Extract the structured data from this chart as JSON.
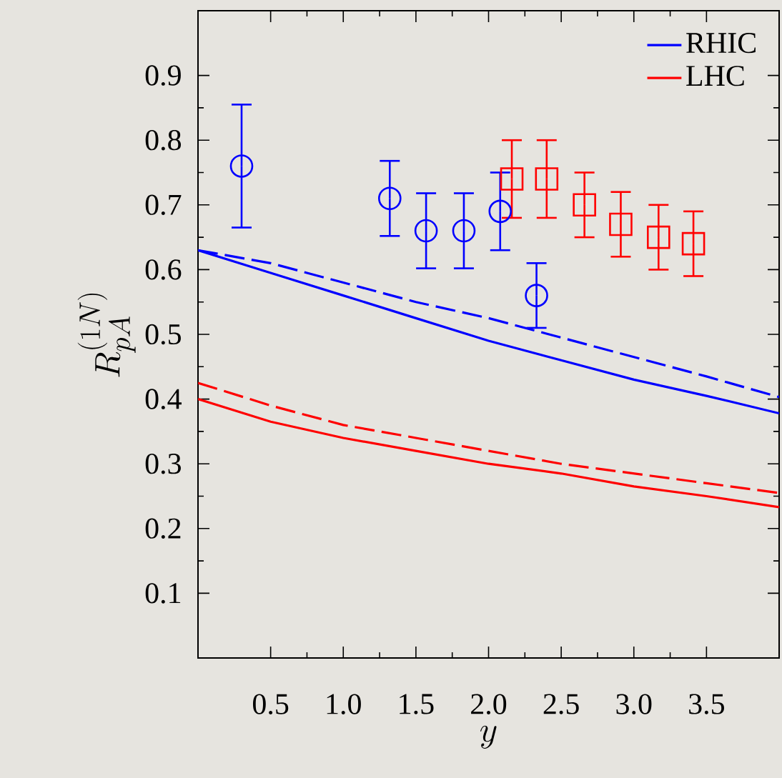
{
  "chart_data": {
    "type": "line",
    "xlabel": "y",
    "ylabel": "R_{pA}^{(1N)}",
    "xlim": [
      0,
      4
    ],
    "ylim": [
      0,
      1
    ],
    "xticks": [
      0.5,
      {
        "value": 1,
        "label": "1.0"
      },
      1.5,
      {
        "value": 2,
        "label": "2.0"
      },
      2.5,
      {
        "value": 3,
        "label": "3.0"
      },
      3.5
    ],
    "yticks": [
      0.1,
      0.2,
      0.3,
      0.4,
      0.5,
      0.6,
      0.7,
      0.8,
      0.9
    ],
    "grid": false,
    "legend": "top right",
    "series": [
      {
        "name": "RHIC",
        "color": "#0000ff",
        "line_style": "solid",
        "x": [
          0,
          0.5,
          1.0,
          1.5,
          2.0,
          2.5,
          3.0,
          3.5,
          4.0
        ],
        "values": [
          0.63,
          0.595,
          0.56,
          0.525,
          0.49,
          0.46,
          0.43,
          0.405,
          0.378
        ]
      },
      {
        "name": "LHC",
        "color": "#ff0000",
        "line_style": "solid",
        "x": [
          0,
          0.5,
          1.0,
          1.5,
          2.0,
          2.5,
          3.0,
          3.5,
          4.0
        ],
        "values": [
          0.4,
          0.365,
          0.34,
          0.32,
          0.3,
          0.285,
          0.265,
          0.25,
          0.233
        ]
      },
      {
        "color": "#0000ff",
        "line_style": "dashed",
        "x": [
          0,
          0.5,
          1.0,
          1.5,
          2.0,
          2.5,
          3.0,
          3.5,
          4.0
        ],
        "values": [
          0.63,
          0.61,
          0.58,
          0.55,
          0.525,
          0.495,
          0.465,
          0.435,
          0.403
        ]
      },
      {
        "color": "#ff0000",
        "line_style": "dashed",
        "x": [
          0,
          0.5,
          1.0,
          1.5,
          2.0,
          2.5,
          3.0,
          3.5,
          4.0
        ],
        "values": [
          0.425,
          0.39,
          0.36,
          0.34,
          0.32,
          0.3,
          0.285,
          0.27,
          0.255
        ]
      },
      {
        "type": "scatter",
        "color": "#0000ff",
        "marker": "circle",
        "x": [
          0.3,
          1.32,
          1.57,
          1.83,
          2.08,
          2.33
        ],
        "values": [
          0.76,
          0.71,
          0.66,
          0.66,
          0.69,
          0.56
        ],
        "errors": [
          0.095,
          0.058,
          0.058,
          0.058,
          0.06,
          0.05
        ]
      },
      {
        "type": "scatter",
        "color": "#ff0000",
        "marker": "square",
        "x": [
          2.16,
          2.4,
          2.66,
          2.91,
          3.17,
          3.41
        ],
        "values": [
          0.74,
          0.74,
          0.7,
          0.67,
          0.65,
          0.64
        ],
        "errors": [
          0.06,
          0.06,
          0.05,
          0.05,
          0.05,
          0.05
        ]
      }
    ]
  }
}
